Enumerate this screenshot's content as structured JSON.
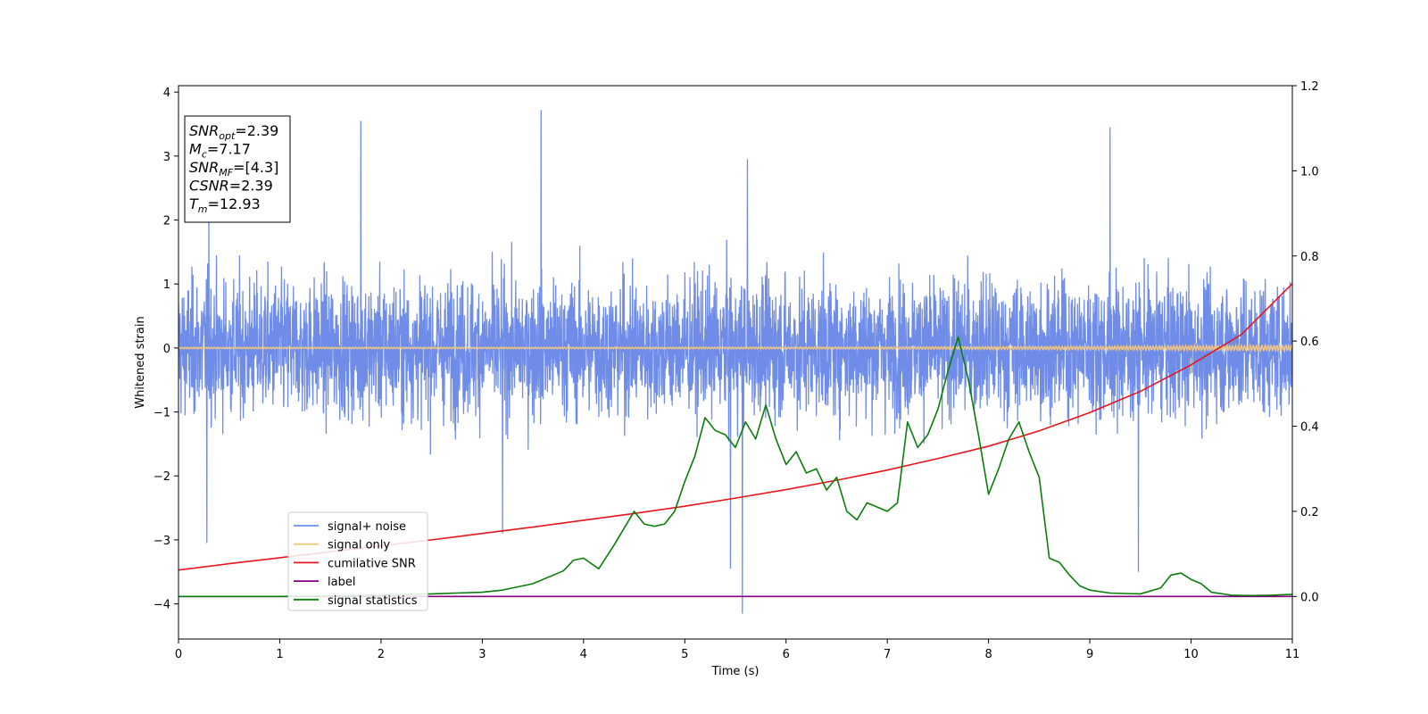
{
  "chart_data": {
    "type": "line",
    "title": "",
    "xlabel": "Time (s)",
    "ylabel": "Whitened strain",
    "xlim": [
      0,
      11
    ],
    "ylim": [
      -4.55,
      4.1
    ],
    "y2lim": [
      -0.1,
      1.2
    ],
    "xticks": [
      0,
      1,
      2,
      3,
      4,
      5,
      6,
      7,
      8,
      9,
      10,
      11
    ],
    "yticks": [
      -4,
      -3,
      -2,
      -1,
      0,
      1,
      2,
      3,
      4
    ],
    "y2ticks": [
      0.0,
      0.2,
      0.4,
      0.6,
      0.8,
      1.0,
      1.2
    ],
    "y2tick_labels": [
      "0.0",
      "0.2",
      "0.4",
      "0.6",
      "0.8",
      "1.0",
      "1.2"
    ],
    "grid": false,
    "legend_placement": "lower-left",
    "colors": {
      "signal_noise": "#6f8de8",
      "signal_only": "#f5c77e",
      "cumulative_snr": "#e8151b",
      "label": "#800080",
      "signal_statistics": "#0a7d0a"
    },
    "annotation": {
      "lines": [
        {
          "main": "SNR",
          "sub": "opt",
          "value": "=2.39"
        },
        {
          "main": "M",
          "sub": "c",
          "value": "=7.17"
        },
        {
          "main": "SNR",
          "sub": "MF",
          "value": "=[4.3]"
        },
        {
          "main": "CSNR",
          "sub": "",
          "value": "=2.39"
        },
        {
          "main": "T",
          "sub": "m",
          "value": "=12.93"
        }
      ]
    },
    "series": [
      {
        "name": "signal+ noise",
        "axis": "left",
        "style": "noise",
        "x_range": [
          0,
          11
        ],
        "band": [
          -1.6,
          1.4
        ],
        "peaks_high": [
          [
            1.8,
            3.55
          ],
          [
            3.58,
            3.72
          ],
          [
            9.2,
            3.45
          ],
          [
            5.62,
            2.95
          ],
          [
            0.3,
            2.2
          ]
        ],
        "peaks_low": [
          [
            5.57,
            -4.15
          ],
          [
            0.28,
            -3.05
          ],
          [
            9.48,
            -3.5
          ],
          [
            5.45,
            -3.45
          ],
          [
            3.2,
            -2.9
          ]
        ]
      },
      {
        "name": "signal only",
        "axis": "left",
        "x": [
          0,
          5,
          8,
          9,
          10,
          11
        ],
        "y": [
          0.0,
          0.01,
          0.015,
          0.02,
          0.03,
          0.03
        ]
      },
      {
        "name": "cumilative SNR",
        "axis": "right",
        "x": [
          0,
          0.5,
          1,
          1.5,
          2,
          2.5,
          3,
          3.5,
          4,
          4.5,
          5,
          5.5,
          6,
          6.5,
          7,
          7.5,
          8,
          8.5,
          9,
          9.5,
          10,
          10.5,
          11
        ],
        "y": [
          0.062,
          0.077,
          0.091,
          0.105,
          0.119,
          0.133,
          0.148,
          0.163,
          0.179,
          0.195,
          0.212,
          0.231,
          0.251,
          0.273,
          0.297,
          0.324,
          0.353,
          0.389,
          0.432,
          0.482,
          0.544,
          0.616,
          0.735
        ]
      },
      {
        "name": "label",
        "axis": "right",
        "x": [
          0,
          11
        ],
        "y": [
          0.0,
          0.0
        ]
      },
      {
        "name": "signal statistics",
        "axis": "right",
        "x": [
          0,
          1,
          2,
          2.5,
          3,
          3.2,
          3.5,
          3.8,
          3.9,
          4.0,
          4.15,
          4.3,
          4.5,
          4.6,
          4.7,
          4.8,
          4.9,
          5.0,
          5.1,
          5.2,
          5.3,
          5.4,
          5.5,
          5.6,
          5.7,
          5.8,
          5.9,
          6.0,
          6.1,
          6.2,
          6.3,
          6.4,
          6.5,
          6.6,
          6.7,
          6.8,
          6.9,
          7.0,
          7.1,
          7.2,
          7.3,
          7.4,
          7.5,
          7.6,
          7.7,
          7.8,
          7.9,
          8.0,
          8.1,
          8.2,
          8.3,
          8.4,
          8.5,
          8.6,
          8.7,
          8.8,
          8.9,
          9.0,
          9.2,
          9.5,
          9.7,
          9.8,
          9.9,
          10.0,
          10.1,
          10.2,
          10.4,
          10.6,
          10.8,
          11.0
        ],
        "y": [
          0.0,
          0.0,
          0.003,
          0.006,
          0.01,
          0.015,
          0.03,
          0.06,
          0.085,
          0.09,
          0.065,
          0.12,
          0.2,
          0.17,
          0.165,
          0.17,
          0.2,
          0.27,
          0.33,
          0.42,
          0.39,
          0.38,
          0.35,
          0.41,
          0.37,
          0.45,
          0.37,
          0.31,
          0.34,
          0.29,
          0.3,
          0.25,
          0.28,
          0.2,
          0.18,
          0.22,
          0.21,
          0.2,
          0.22,
          0.41,
          0.35,
          0.38,
          0.44,
          0.53,
          0.61,
          0.51,
          0.38,
          0.24,
          0.3,
          0.37,
          0.41,
          0.34,
          0.28,
          0.09,
          0.08,
          0.05,
          0.025,
          0.015,
          0.008,
          0.006,
          0.02,
          0.05,
          0.055,
          0.04,
          0.03,
          0.01,
          0.003,
          0.002,
          0.003,
          0.005
        ]
      }
    ]
  }
}
